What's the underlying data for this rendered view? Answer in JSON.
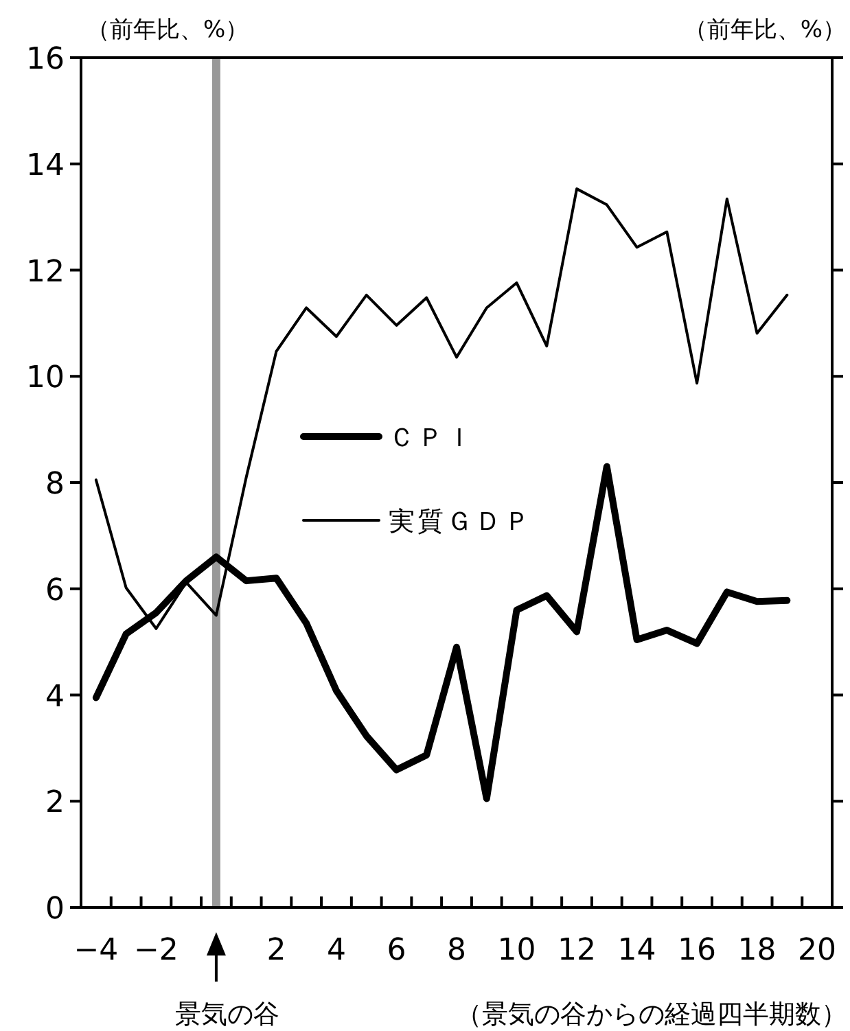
{
  "chart_data": {
    "type": "line",
    "ylabel": "（前年比、%）",
    "y2label": "（前年比、%）",
    "xlabel": "（景気の谷からの経過四半期数）",
    "x": [
      -4,
      -3,
      -2,
      -1,
      0,
      1,
      2,
      3,
      4,
      5,
      6,
      7,
      8,
      9,
      10,
      11,
      12,
      13,
      14,
      15,
      16,
      17,
      18,
      19
    ],
    "xlim": [
      -4.5,
      20.5
    ],
    "xticks": [
      -4,
      -2,
      2,
      4,
      6,
      8,
      10,
      12,
      14,
      16,
      18,
      20
    ],
    "ylim": [
      0,
      16
    ],
    "yticks": [
      0,
      2,
      4,
      6,
      8,
      10,
      12,
      14,
      16
    ],
    "series": [
      {
        "name": "ＣＰＩ",
        "color": "#000000",
        "values": [
          3.95,
          5.15,
          5.55,
          6.15,
          6.6,
          6.15,
          6.2,
          5.35,
          4.08,
          3.23,
          2.59,
          2.87,
          4.9,
          2.05,
          5.6,
          5.87,
          5.19,
          8.3,
          5.04,
          5.22,
          4.97,
          5.94,
          5.76,
          5.78
        ]
      },
      {
        "name": "実質ＧＤＰ",
        "color": "#000000",
        "values": [
          8.05,
          6.02,
          5.25,
          6.12,
          5.5,
          8.1,
          10.47,
          11.29,
          10.75,
          11.53,
          10.96,
          11.48,
          10.36,
          11.29,
          11.76,
          10.57,
          13.53,
          13.23,
          12.43,
          12.72,
          9.87,
          13.34,
          10.81,
          11.53
        ]
      }
    ],
    "ref_lines": [
      {
        "axis": "x",
        "value": 0,
        "color": "#999999"
      }
    ],
    "annotations": [
      "景気の谷"
    ],
    "legend": "center left",
    "grid": false,
    "marker": "none",
    "line_style": "solid"
  }
}
